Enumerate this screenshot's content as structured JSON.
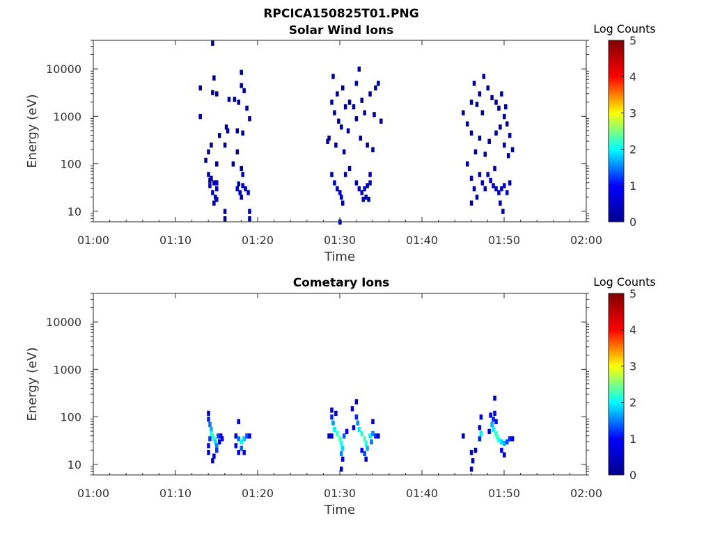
{
  "figure_title": "RPCICA150825T01.PNG",
  "colors": {
    "colorbar": [
      "#00008f",
      "#0000ff",
      "#00ffff",
      "#ffff00",
      "#ff0000",
      "#800000"
    ]
  },
  "chart_data": [
    {
      "type": "heatmap",
      "title": "Solar Wind Ions",
      "xlabel": "Time",
      "ylabel": "Energy (eV)",
      "xticks": [
        "01:00",
        "01:10",
        "01:20",
        "01:30",
        "01:40",
        "01:50",
        "02:00"
      ],
      "yticks": [
        "10",
        "100",
        "1000",
        "10000"
      ],
      "xlim": [
        "01:00",
        "02:00"
      ],
      "ylim": [
        6,
        40000
      ],
      "yscale": "log",
      "colorbar": {
        "label": "Log Counts",
        "range": [
          0,
          5
        ],
        "ticks": [
          "0",
          "1",
          "2",
          "3",
          "4",
          "5"
        ]
      },
      "cells": [
        [
          "01:14:00",
          60,
          0.2
        ],
        [
          "01:14:20",
          50,
          0.3
        ],
        [
          "01:14:40",
          40,
          0.3
        ],
        [
          "01:15:00",
          30,
          0.4
        ],
        [
          "01:14:10",
          35,
          0.3
        ],
        [
          "01:14:30",
          25,
          0.3
        ],
        [
          "01:14:50",
          20,
          0.3
        ],
        [
          "01:15:00",
          18,
          0.3
        ],
        [
          "01:14:10",
          45,
          0.2
        ],
        [
          "01:15:00",
          40,
          0.3
        ],
        [
          "01:14:40",
          15,
          0.2
        ],
        [
          "01:16:00",
          10,
          0.2
        ],
        [
          "01:16:00",
          7,
          0.2
        ],
        [
          "01:19:00",
          10,
          0.2
        ],
        [
          "01:19:00",
          7,
          0.2
        ],
        [
          "01:17:30",
          30,
          0.3
        ],
        [
          "01:17:50",
          25,
          0.3
        ],
        [
          "01:18:10",
          35,
          0.3
        ],
        [
          "01:18:30",
          30,
          0.3
        ],
        [
          "01:18:50",
          25,
          0.3
        ],
        [
          "01:18:00",
          20,
          0.2
        ],
        [
          "01:17:40",
          38,
          0.2
        ],
        [
          "01:13:00",
          1000,
          0.1
        ],
        [
          "01:14:30",
          3200,
          0.1
        ],
        [
          "01:15:00",
          3000,
          0.1
        ],
        [
          "01:13:00",
          4000,
          0.1
        ],
        [
          "01:14:40",
          6500,
          0.1
        ],
        [
          "01:14:30",
          35000,
          0.1
        ],
        [
          "01:16:30",
          2300,
          0.1
        ],
        [
          "01:17:10",
          2300,
          0.1
        ],
        [
          "01:18:00",
          8500,
          0.1
        ],
        [
          "01:18:20",
          3500,
          0.1
        ],
        [
          "01:18:40",
          1500,
          0.1
        ],
        [
          "01:19:00",
          900,
          0.1
        ],
        [
          "01:16:20",
          500,
          0.1
        ],
        [
          "01:17:30",
          500,
          0.1
        ],
        [
          "01:15:20",
          400,
          0.1
        ],
        [
          "01:14:20",
          250,
          0.1
        ],
        [
          "01:16:10",
          600,
          0.1
        ],
        [
          "01:18:10",
          450,
          0.1
        ],
        [
          "01:16:00",
          250,
          0.1
        ],
        [
          "01:17:30",
          180,
          0.1
        ],
        [
          "01:18:00",
          80,
          0.1
        ],
        [
          "01:18:10",
          60,
          0.1
        ],
        [
          "01:14:00",
          180,
          0.1
        ],
        [
          "01:13:40",
          120,
          0.1
        ],
        [
          "01:15:00",
          100,
          0.1
        ],
        [
          "01:17:00",
          100,
          0.1
        ],
        [
          "01:18:00",
          4500,
          0.1
        ],
        [
          "01:17:40",
          2000,
          0.1
        ],
        [
          "01:29:00",
          60,
          0.2
        ],
        [
          "01:29:20",
          40,
          0.3
        ],
        [
          "01:29:40",
          30,
          0.3
        ],
        [
          "01:30:00",
          25,
          0.3
        ],
        [
          "01:30:10",
          20,
          0.3
        ],
        [
          "01:30:20",
          15,
          0.2
        ],
        [
          "01:30:00",
          6,
          0.2
        ],
        [
          "01:30:40",
          60,
          0.2
        ],
        [
          "01:31:10",
          80,
          0.2
        ],
        [
          "01:32:00",
          40,
          0.2
        ],
        [
          "01:32:20",
          30,
          0.3
        ],
        [
          "01:32:40",
          25,
          0.3
        ],
        [
          "01:33:00",
          30,
          0.3
        ],
        [
          "01:33:20",
          35,
          0.3
        ],
        [
          "01:33:40",
          40,
          0.3
        ],
        [
          "01:33:10",
          20,
          0.3
        ],
        [
          "01:32:50",
          18,
          0.2
        ],
        [
          "01:33:30",
          18,
          0.2
        ],
        [
          "01:33:40",
          60,
          0.2
        ],
        [
          "01:28:30",
          300,
          0.1
        ],
        [
          "01:29:00",
          2000,
          0.1
        ],
        [
          "01:29:20",
          1200,
          0.1
        ],
        [
          "01:29:40",
          3000,
          0.1
        ],
        [
          "01:29:10",
          7000,
          0.1
        ],
        [
          "01:30:20",
          4000,
          0.1
        ],
        [
          "01:30:40",
          1600,
          0.1
        ],
        [
          "01:31:10",
          2000,
          0.1
        ],
        [
          "01:31:40",
          1600,
          0.1
        ],
        [
          "01:32:00",
          5000,
          0.1
        ],
        [
          "01:32:20",
          10000,
          0.1
        ],
        [
          "01:32:40",
          2200,
          0.1
        ],
        [
          "01:33:00",
          1200,
          0.1
        ],
        [
          "01:33:40",
          3000,
          0.1
        ],
        [
          "01:34:20",
          4000,
          0.1
        ],
        [
          "01:34:40",
          5000,
          0.1
        ],
        [
          "01:35:00",
          800,
          0.1
        ],
        [
          "01:34:10",
          1100,
          0.1
        ],
        [
          "01:29:50",
          800,
          0.1
        ],
        [
          "01:30:10",
          600,
          0.1
        ],
        [
          "01:31:00",
          500,
          0.1
        ],
        [
          "01:32:00",
          900,
          0.1
        ],
        [
          "01:32:30",
          350,
          0.1
        ],
        [
          "01:33:20",
          250,
          0.1
        ],
        [
          "01:34:00",
          200,
          0.1
        ],
        [
          "01:29:30",
          250,
          0.1
        ],
        [
          "01:28:40",
          350,
          0.1
        ],
        [
          "01:30:30",
          180,
          0.1
        ],
        [
          "01:45:30",
          100,
          0.2
        ],
        [
          "01:46:00",
          50,
          0.2
        ],
        [
          "01:46:20",
          30,
          0.2
        ],
        [
          "01:46:40",
          20,
          0.2
        ],
        [
          "01:46:00",
          15,
          0.2
        ],
        [
          "01:47:00",
          60,
          0.2
        ],
        [
          "01:47:20",
          40,
          0.2
        ],
        [
          "01:47:40",
          30,
          0.2
        ],
        [
          "01:48:00",
          60,
          0.2
        ],
        [
          "01:48:20",
          45,
          0.3
        ],
        [
          "01:48:40",
          35,
          0.3
        ],
        [
          "01:49:00",
          30,
          0.3
        ],
        [
          "01:49:20",
          25,
          0.3
        ],
        [
          "01:49:40",
          30,
          0.3
        ],
        [
          "01:50:00",
          35,
          0.3
        ],
        [
          "01:50:20",
          25,
          0.3
        ],
        [
          "01:49:30",
          15,
          0.2
        ],
        [
          "01:49:50",
          10,
          0.2
        ],
        [
          "01:50:40",
          40,
          0.2
        ],
        [
          "01:48:50",
          80,
          0.2
        ],
        [
          "01:45:30",
          700,
          0.1
        ],
        [
          "01:45:00",
          1200,
          0.1
        ],
        [
          "01:46:00",
          2000,
          0.1
        ],
        [
          "01:46:20",
          5000,
          0.1
        ],
        [
          "01:46:40",
          1800,
          0.1
        ],
        [
          "01:47:00",
          3000,
          0.1
        ],
        [
          "01:47:20",
          1200,
          0.1
        ],
        [
          "01:47:30",
          7000,
          0.1
        ],
        [
          "01:48:00",
          4000,
          0.1
        ],
        [
          "01:48:30",
          2500,
          0.1
        ],
        [
          "01:49:00",
          2000,
          0.1
        ],
        [
          "01:49:20",
          1500,
          0.1
        ],
        [
          "01:49:40",
          3000,
          0.1
        ],
        [
          "01:50:00",
          1000,
          0.1
        ],
        [
          "01:50:20",
          700,
          0.1
        ],
        [
          "01:50:40",
          400,
          0.1
        ],
        [
          "01:51:00",
          200,
          0.1
        ],
        [
          "01:50:30",
          150,
          0.1
        ],
        [
          "01:46:00",
          450,
          0.1
        ],
        [
          "01:47:00",
          350,
          0.1
        ],
        [
          "01:48:10",
          300,
          0.1
        ],
        [
          "01:49:00",
          450,
          0.1
        ],
        [
          "01:50:00",
          250,
          0.1
        ],
        [
          "01:46:30",
          180,
          0.1
        ],
        [
          "01:47:40",
          160,
          0.1
        ],
        [
          "01:49:30",
          600,
          0.1
        ],
        [
          "01:50:10",
          1600,
          0.1
        ]
      ]
    },
    {
      "type": "heatmap",
      "title": "Cometary Ions",
      "xlabel": "Time",
      "ylabel": "Energy (eV)",
      "xticks": [
        "01:00",
        "01:10",
        "01:20",
        "01:30",
        "01:40",
        "01:50",
        "02:00"
      ],
      "yticks": [
        "10",
        "100",
        "1000",
        "10000"
      ],
      "xlim": [
        "01:00",
        "02:00"
      ],
      "ylim": [
        6,
        40000
      ],
      "yscale": "log",
      "colorbar": {
        "label": "Log Counts",
        "range": [
          0,
          5
        ],
        "ticks": [
          "0",
          "1",
          "2",
          "3",
          "4",
          "5"
        ]
      },
      "cells": [
        [
          "01:14:00",
          120,
          0.3
        ],
        [
          "01:14:00",
          90,
          0.8
        ],
        [
          "01:14:10",
          70,
          1.2
        ],
        [
          "01:14:20",
          55,
          1.5
        ],
        [
          "01:14:20",
          45,
          1.9
        ],
        [
          "01:14:30",
          40,
          2.2
        ],
        [
          "01:14:40",
          35,
          2.0
        ],
        [
          "01:14:50",
          30,
          1.7
        ],
        [
          "01:15:00",
          25,
          1.3
        ],
        [
          "01:15:00",
          20,
          0.9
        ],
        [
          "01:14:40",
          15,
          0.5
        ],
        [
          "01:14:30",
          12,
          0.3
        ],
        [
          "01:15:10",
          40,
          1.0
        ],
        [
          "01:15:30",
          40,
          0.6
        ],
        [
          "01:15:40",
          35,
          0.4
        ],
        [
          "01:14:10",
          35,
          0.9
        ],
        [
          "01:14:00",
          25,
          0.6
        ],
        [
          "01:14:00",
          18,
          0.4
        ],
        [
          "01:15:20",
          30,
          0.5
        ],
        [
          "01:17:40",
          80,
          0.3
        ],
        [
          "01:17:20",
          40,
          0.4
        ],
        [
          "01:17:40",
          35,
          1.2
        ],
        [
          "01:18:00",
          30,
          1.9
        ],
        [
          "01:18:20",
          35,
          1.6
        ],
        [
          "01:18:40",
          40,
          1.0
        ],
        [
          "01:18:00",
          22,
          1.1
        ],
        [
          "01:17:40",
          18,
          0.6
        ],
        [
          "01:18:20",
          18,
          0.5
        ],
        [
          "01:19:00",
          40,
          0.4
        ],
        [
          "01:17:20",
          25,
          0.5
        ],
        [
          "01:29:00",
          140,
          0.3
        ],
        [
          "01:29:00",
          100,
          0.8
        ],
        [
          "01:29:10",
          75,
          1.4
        ],
        [
          "01:29:20",
          55,
          1.8
        ],
        [
          "01:29:40",
          45,
          2.1
        ],
        [
          "01:30:00",
          35,
          2.3
        ],
        [
          "01:30:10",
          28,
          2.0
        ],
        [
          "01:30:20",
          22,
          1.7
        ],
        [
          "01:30:10",
          17,
          1.3
        ],
        [
          "01:30:20",
          13,
          0.6
        ],
        [
          "01:30:10",
          8,
          0.3
        ],
        [
          "01:29:00",
          40,
          0.5
        ],
        [
          "01:28:40",
          40,
          0.3
        ],
        [
          "01:30:30",
          40,
          1.1
        ],
        [
          "01:30:50",
          50,
          0.6
        ],
        [
          "01:29:30",
          120,
          0.3
        ],
        [
          "01:31:30",
          150,
          0.3
        ],
        [
          "01:32:00",
          210,
          0.3
        ],
        [
          "01:32:00",
          100,
          0.8
        ],
        [
          "01:32:10",
          75,
          1.3
        ],
        [
          "01:32:20",
          55,
          1.8
        ],
        [
          "01:32:40",
          45,
          2.1
        ],
        [
          "01:33:00",
          35,
          2.3
        ],
        [
          "01:33:10",
          28,
          2.0
        ],
        [
          "01:33:20",
          22,
          1.5
        ],
        [
          "01:33:00",
          17,
          1.0
        ],
        [
          "01:33:10",
          13,
          0.5
        ],
        [
          "01:33:40",
          40,
          1.8
        ],
        [
          "01:34:00",
          45,
          1.3
        ],
        [
          "01:34:20",
          40,
          0.8
        ],
        [
          "01:34:40",
          40,
          0.4
        ],
        [
          "01:34:00",
          80,
          0.3
        ],
        [
          "01:33:50",
          30,
          1.2
        ],
        [
          "01:32:40",
          20,
          0.6
        ],
        [
          "01:31:40",
          60,
          0.4
        ],
        [
          "01:45:00",
          40,
          0.3
        ],
        [
          "01:46:00",
          18,
          0.3
        ],
        [
          "01:46:10",
          12,
          0.3
        ],
        [
          "01:46:00",
          8,
          0.3
        ],
        [
          "01:46:30",
          20,
          0.4
        ],
        [
          "01:47:00",
          60,
          0.4
        ],
        [
          "01:47:10",
          100,
          0.5
        ],
        [
          "01:47:10",
          45,
          1.8
        ],
        [
          "01:47:00",
          35,
          0.8
        ],
        [
          "01:48:20",
          110,
          0.6
        ],
        [
          "01:48:40",
          90,
          0.8
        ],
        [
          "01:48:50",
          120,
          0.5
        ],
        [
          "01:48:50",
          250,
          0.3
        ],
        [
          "01:48:30",
          70,
          1.5
        ],
        [
          "01:48:40",
          55,
          1.8
        ],
        [
          "01:49:00",
          45,
          2.1
        ],
        [
          "01:49:10",
          38,
          2.2
        ],
        [
          "01:49:20",
          33,
          2.0
        ],
        [
          "01:49:40",
          30,
          1.7
        ],
        [
          "01:50:00",
          28,
          1.5
        ],
        [
          "01:50:20",
          30,
          1.0
        ],
        [
          "01:50:40",
          35,
          0.8
        ],
        [
          "01:51:00",
          35,
          0.5
        ],
        [
          "01:49:40",
          20,
          0.6
        ],
        [
          "01:50:00",
          16,
          0.3
        ],
        [
          "01:49:00",
          80,
          0.7
        ],
        [
          "01:48:10",
          50,
          0.6
        ]
      ]
    }
  ]
}
